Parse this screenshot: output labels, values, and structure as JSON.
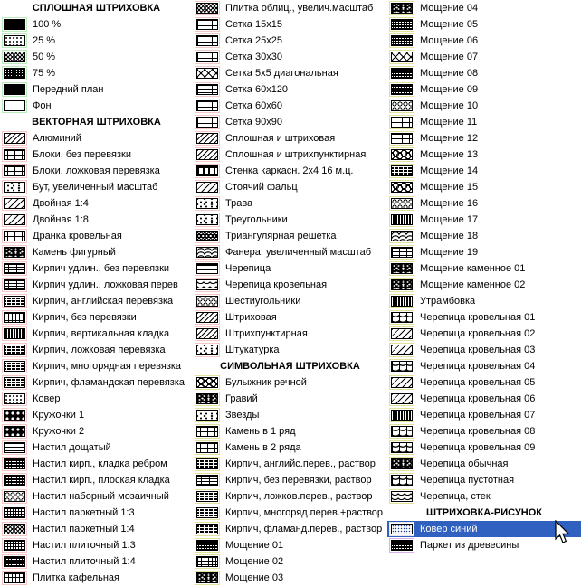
{
  "colors": {
    "bg": "#ffffff",
    "text": "#000000",
    "selection_bg": "#3060c0",
    "selection_text": "#ffffff",
    "selected_swatch_border": "#e6e6e6",
    "border_solid": "#b8ecb8",
    "border_vector": "#f7c6c6",
    "border_symbol": "#e2e296",
    "border_picture": "#d8b0ec"
  },
  "columns": [
    {
      "rows": [
        {
          "t": "h",
          "label": "СПЛОШНАЯ ШТРИХОВКА"
        },
        {
          "t": "i",
          "label": "100 %",
          "g": "solid",
          "p": "black"
        },
        {
          "t": "i",
          "label": "25 %",
          "g": "solid",
          "p": "dots25"
        },
        {
          "t": "i",
          "label": "50 %",
          "g": "solid",
          "p": "check50"
        },
        {
          "t": "i",
          "label": "75 %",
          "g": "solid",
          "p": "dots75"
        },
        {
          "t": "i",
          "label": "Передний план",
          "g": "solid",
          "p": "black"
        },
        {
          "t": "i",
          "label": "Фон",
          "g": "solid",
          "p": "white"
        },
        {
          "t": "h",
          "label": "ВЕКТОРНАЯ ШТРИХОВКА"
        },
        {
          "t": "i",
          "label": "Алюминий",
          "g": "vector",
          "p": "diag"
        },
        {
          "t": "i",
          "label": "Блоки, без перевязки",
          "g": "vector",
          "p": "brick"
        },
        {
          "t": "i",
          "label": "Блоки, ложковая перевязка",
          "g": "vector",
          "p": "brick"
        },
        {
          "t": "i",
          "label": "Бут, увеличенный масштаб",
          "g": "vector",
          "p": "speckle"
        },
        {
          "t": "i",
          "label": "Двойная 1:4",
          "g": "vector",
          "p": "diagw"
        },
        {
          "t": "i",
          "label": "Двойная 1:8",
          "g": "vector",
          "p": "diagw"
        },
        {
          "t": "i",
          "label": "Дранка кровельная",
          "g": "vector",
          "p": "brick"
        },
        {
          "t": "i",
          "label": "Камень фигурный",
          "g": "vector",
          "p": "sdark"
        },
        {
          "t": "i",
          "label": "Кирпич удлин., без перевязки",
          "g": "vector",
          "p": "brick3"
        },
        {
          "t": "i",
          "label": "Кирпич удлин., ложковая перев",
          "g": "vector",
          "p": "brick3"
        },
        {
          "t": "i",
          "label": "Кирпич, английская перевязка",
          "g": "vector",
          "p": "bdark"
        },
        {
          "t": "i",
          "label": "Кирпич, без перевязки",
          "g": "vector",
          "p": "gridfine"
        },
        {
          "t": "i",
          "label": "Кирпич, вертикальная кладка",
          "g": "vector",
          "p": "vdark"
        },
        {
          "t": "i",
          "label": "Кирпич, ложковая перевязка",
          "g": "vector",
          "p": "bdark"
        },
        {
          "t": "i",
          "label": "Кирпич, многорядная перевязка",
          "g": "vector",
          "p": "bdark"
        },
        {
          "t": "i",
          "label": "Кирпич, фламандская перевязка",
          "g": "vector",
          "p": "bdark"
        },
        {
          "t": "i",
          "label": "Ковер",
          "g": "vector",
          "p": "dots25"
        },
        {
          "t": "i",
          "label": "Кружочки 1",
          "g": "vector",
          "p": "cwhite"
        },
        {
          "t": "i",
          "label": "Кружочки 2",
          "g": "vector",
          "p": "cwhite"
        },
        {
          "t": "i",
          "label": "Настил дощатый",
          "g": "vector",
          "p": "hlines"
        },
        {
          "t": "i",
          "label": "Настил кирп., кладка ребром",
          "g": "vector",
          "p": "wdark"
        },
        {
          "t": "i",
          "label": "Настил кирп., плоская кладка",
          "g": "vector",
          "p": "wdark"
        },
        {
          "t": "i",
          "label": "Настил наборный мозаичный",
          "g": "vector",
          "p": "coutline"
        },
        {
          "t": "i",
          "label": "Настил паркетный 1:3",
          "g": "vector",
          "p": "weave"
        },
        {
          "t": "i",
          "label": "Настил паркетный 1:4",
          "g": "vector",
          "p": "check50"
        },
        {
          "t": "i",
          "label": "Настил плиточный 1:3",
          "g": "vector",
          "p": "weave"
        },
        {
          "t": "i",
          "label": "Настил плиточный 1:4",
          "g": "vector",
          "p": "wdark"
        },
        {
          "t": "i",
          "label": "Плитка кафельная",
          "g": "vector",
          "p": "gridfine"
        }
      ]
    },
    {
      "rows": [
        {
          "t": "i",
          "label": "Плитка облиц., увелич.масштаб",
          "g": "vector",
          "p": "check50"
        },
        {
          "t": "i",
          "label": "Сетка 15х15",
          "g": "vector",
          "p": "grid2"
        },
        {
          "t": "i",
          "label": "Сетка 25х25",
          "g": "vector",
          "p": "grid2"
        },
        {
          "t": "i",
          "label": "Сетка 30х30",
          "g": "vector",
          "p": "grid2"
        },
        {
          "t": "i",
          "label": "Сетка 5х5 диагональная",
          "g": "vector",
          "p": "diamond"
        },
        {
          "t": "i",
          "label": "Сетка 60х120",
          "g": "vector",
          "p": "grid3"
        },
        {
          "t": "i",
          "label": "Сетка 60х60",
          "g": "vector",
          "p": "grid2"
        },
        {
          "t": "i",
          "label": "Сетка 90х90",
          "g": "vector",
          "p": "grid2"
        },
        {
          "t": "i",
          "label": "Сплошная и штриховая",
          "g": "vector",
          "p": "diag"
        },
        {
          "t": "i",
          "label": "Сплошная и штрихпунктирная",
          "g": "vector",
          "p": "diag"
        },
        {
          "t": "i",
          "label": "Стенка каркасн. 2х4 16 м.ц.",
          "g": "vector",
          "p": "frame"
        },
        {
          "t": "i",
          "label": "Стоячий фальц",
          "g": "vector",
          "p": "diagw"
        },
        {
          "t": "i",
          "label": "Трава",
          "g": "vector",
          "p": "speckle"
        },
        {
          "t": "i",
          "label": "Треугольники",
          "g": "vector",
          "p": "speckle"
        },
        {
          "t": "i",
          "label": "Триангулярная решетка",
          "g": "vector",
          "p": "trimesh"
        },
        {
          "t": "i",
          "label": "Фанера, увеличенный масштаб",
          "g": "vector",
          "p": "wavy"
        },
        {
          "t": "i",
          "label": "Черепица",
          "g": "vector",
          "p": "thickh"
        },
        {
          "t": "i",
          "label": "Черепица кровельная",
          "g": "vector",
          "p": "scallop"
        },
        {
          "t": "i",
          "label": "Шестиугольники",
          "g": "vector",
          "p": "coutline"
        },
        {
          "t": "i",
          "label": "Штриховая",
          "g": "vector",
          "p": "diag"
        },
        {
          "t": "i",
          "label": "Штрихпунктирная",
          "g": "vector",
          "p": "diag"
        },
        {
          "t": "i",
          "label": "Штукатурка",
          "g": "vector",
          "p": "speckle"
        },
        {
          "t": "h",
          "label": "СИМВОЛЬНАЯ ШТРИХОВКА"
        },
        {
          "t": "i",
          "label": "Булыжник речной",
          "g": "symbol",
          "p": "cobble"
        },
        {
          "t": "i",
          "label": "Гравий",
          "g": "symbol",
          "p": "sdark"
        },
        {
          "t": "i",
          "label": "Звезды",
          "g": "symbol",
          "p": "speckle"
        },
        {
          "t": "i",
          "label": "Камень в 1 ряд",
          "g": "symbol",
          "p": "brick"
        },
        {
          "t": "i",
          "label": "Камень в 2 ряда",
          "g": "symbol",
          "p": "brick"
        },
        {
          "t": "i",
          "label": "Кирпич, английс.перев., раствор",
          "g": "symbol",
          "p": "bdark"
        },
        {
          "t": "i",
          "label": "Кирпич, без перевязки, раствор",
          "g": "symbol",
          "p": "brick3"
        },
        {
          "t": "i",
          "label": "Кирпич, ложков.перев., раствор",
          "g": "symbol",
          "p": "bdark"
        },
        {
          "t": "i",
          "label": "Кирпич, многоряд.перев.+раствор",
          "g": "symbol",
          "p": "bdark"
        },
        {
          "t": "i",
          "label": "Кирпич, фламанд.перев., раствор",
          "g": "symbol",
          "p": "bdark"
        },
        {
          "t": "i",
          "label": "Мощение 01",
          "g": "symbol",
          "p": "wdark"
        },
        {
          "t": "i",
          "label": "Мощение 02",
          "g": "symbol",
          "p": "gridfine"
        },
        {
          "t": "i",
          "label": "Мощение 03",
          "g": "symbol",
          "p": "sdark"
        }
      ]
    },
    {
      "rows": [
        {
          "t": "i",
          "label": "Мощение 04",
          "g": "symbol",
          "p": "sdark"
        },
        {
          "t": "i",
          "label": "Мощение 05",
          "g": "symbol",
          "p": "wdark"
        },
        {
          "t": "i",
          "label": "Мощение 06",
          "g": "symbol",
          "p": "wdark"
        },
        {
          "t": "i",
          "label": "Мощение 07",
          "g": "symbol",
          "p": "diamond"
        },
        {
          "t": "i",
          "label": "Мощение 08",
          "g": "symbol",
          "p": "wdark"
        },
        {
          "t": "i",
          "label": "Мощение 09",
          "g": "symbol",
          "p": "wdark"
        },
        {
          "t": "i",
          "label": "Мощение 10",
          "g": "symbol",
          "p": "coutline"
        },
        {
          "t": "i",
          "label": "Мощение 11",
          "g": "symbol",
          "p": "brick"
        },
        {
          "t": "i",
          "label": "Мощение 12",
          "g": "symbol",
          "p": "brick"
        },
        {
          "t": "i",
          "label": "Мощение 13",
          "g": "symbol",
          "p": "cobble"
        },
        {
          "t": "i",
          "label": "Мощение 14",
          "g": "symbol",
          "p": "bdark"
        },
        {
          "t": "i",
          "label": "Мощение 15",
          "g": "symbol",
          "p": "cobble"
        },
        {
          "t": "i",
          "label": "Мощение 16",
          "g": "symbol",
          "p": "coutline"
        },
        {
          "t": "i",
          "label": "Мощение 17",
          "g": "symbol",
          "p": "vdark"
        },
        {
          "t": "i",
          "label": "Мощение 18",
          "g": "symbol",
          "p": "wavy"
        },
        {
          "t": "i",
          "label": "Мощение 19",
          "g": "symbol",
          "p": "grid3"
        },
        {
          "t": "i",
          "label": "Мощение каменное 01",
          "g": "symbol",
          "p": "sdark"
        },
        {
          "t": "i",
          "label": "Мощение каменное 02",
          "g": "symbol",
          "p": "sdark"
        },
        {
          "t": "i",
          "label": "Утрамбовка",
          "g": "symbol",
          "p": "vdark"
        },
        {
          "t": "i",
          "label": "Черепица кровельная 01",
          "g": "symbol",
          "p": "archline"
        },
        {
          "t": "i",
          "label": "Черепица кровельная 02",
          "g": "symbol",
          "p": "diagw"
        },
        {
          "t": "i",
          "label": "Черепица кровельная 03",
          "g": "symbol",
          "p": "diagw"
        },
        {
          "t": "i",
          "label": "Черепица кровельная 04",
          "g": "symbol",
          "p": "archline"
        },
        {
          "t": "i",
          "label": "Черепица кровельная 05",
          "g": "symbol",
          "p": "diagw"
        },
        {
          "t": "i",
          "label": "Черепица кровельная 06",
          "g": "symbol",
          "p": "diagw"
        },
        {
          "t": "i",
          "label": "Черепица кровельная 07",
          "g": "symbol",
          "p": "vdark"
        },
        {
          "t": "i",
          "label": "Черепица кровельная 08",
          "g": "symbol",
          "p": "archline"
        },
        {
          "t": "i",
          "label": "Черепица кровельная 09",
          "g": "symbol",
          "p": "archline"
        },
        {
          "t": "i",
          "label": "Черепица обычная",
          "g": "symbol",
          "p": "sdark"
        },
        {
          "t": "i",
          "label": "Черепица пустотная",
          "g": "symbol",
          "p": "archline"
        },
        {
          "t": "i",
          "label": "Черепица, стек",
          "g": "symbol",
          "p": "scallop"
        },
        {
          "t": "h",
          "label": "ШТРИХОВКА-РИСУНОК"
        },
        {
          "t": "i",
          "label": "Ковер синий",
          "g": "picture",
          "p": "bluedots",
          "sel": true
        },
        {
          "t": "i",
          "label": "Паркет из древесины",
          "g": "picture",
          "p": "wdark"
        }
      ]
    }
  ]
}
